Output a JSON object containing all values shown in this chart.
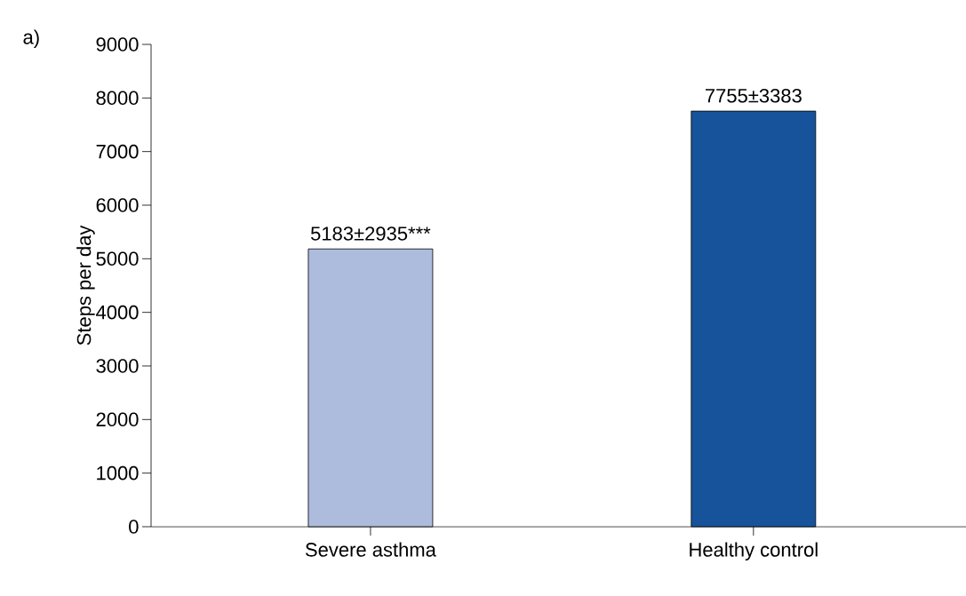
{
  "chart_data": {
    "type": "bar",
    "ylabel": "Steps per day",
    "categories": [
      "Severe asthma",
      "Healthy control"
    ],
    "values": [
      5183,
      7755
    ],
    "colors": [
      "#adbcdc",
      "#17539b"
    ],
    "value_labels": [
      "5183±2935***",
      "7755±3383"
    ],
    "ylim": [
      0,
      9000
    ],
    "yticks": [
      0,
      1000,
      2000,
      3000,
      4000,
      5000,
      6000,
      7000,
      8000,
      9000
    ],
    "grid": false,
    "annotations": [
      "a)"
    ]
  }
}
